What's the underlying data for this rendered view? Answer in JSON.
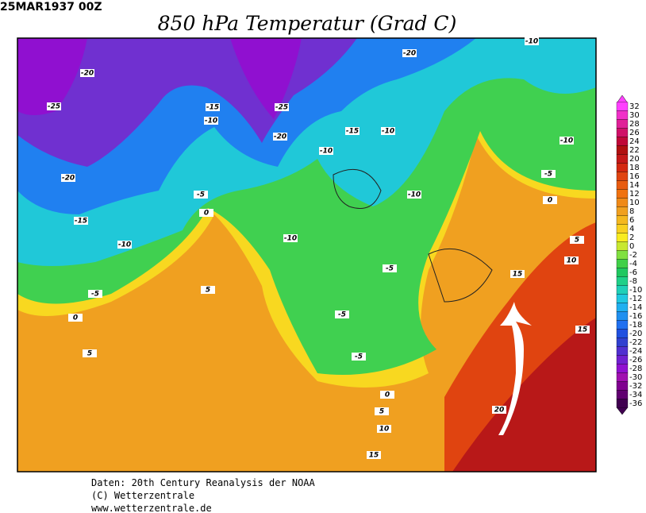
{
  "header": {
    "timestamp": "25MAR1937 00Z",
    "title": "850 hPa Temperatur (Grad C)"
  },
  "colorbar": {
    "labels": [
      32,
      30,
      28,
      26,
      24,
      22,
      20,
      18,
      16,
      14,
      12,
      10,
      8,
      6,
      4,
      2,
      0,
      -2,
      -4,
      -6,
      -8,
      -10,
      -12,
      -14,
      -16,
      -18,
      -20,
      -22,
      -24,
      -26,
      -28,
      -30,
      -32,
      -34,
      -36
    ],
    "colors": [
      "#ff40ff",
      "#f030c8",
      "#e02098",
      "#d01068",
      "#c00838",
      "#b01010",
      "#c41818",
      "#d42810",
      "#e04410",
      "#e85c10",
      "#f07210",
      "#f08a18",
      "#f0a020",
      "#f4b820",
      "#f8d020",
      "#f8ec20",
      "#c8e830",
      "#80e040",
      "#40d048",
      "#20c860",
      "#20d088",
      "#20d0b8",
      "#20c8e0",
      "#20b0f0",
      "#2090f0",
      "#2070f0",
      "#2050e0",
      "#3040d0",
      "#5030d0",
      "#7020d0",
      "#9010d0",
      "#a010b0",
      "#800090",
      "#600070",
      "#400050"
    ]
  },
  "contour_labels": [
    -20,
    -25,
    -20,
    -15,
    -10,
    -5,
    0,
    5,
    5,
    0,
    -5,
    -10,
    -15,
    -20,
    -25,
    -20,
    -15,
    -10,
    -10,
    -10,
    -5,
    -5,
    -5,
    -10,
    0,
    -5,
    -10,
    5,
    10,
    15,
    15,
    20,
    0,
    5,
    10,
    15,
    -10
  ],
  "footer": [
    "Daten: 20th Century Reanalysis der NOAA",
    "(C) Wetterzentrale",
    "www.wetterzentrale.de"
  ]
}
